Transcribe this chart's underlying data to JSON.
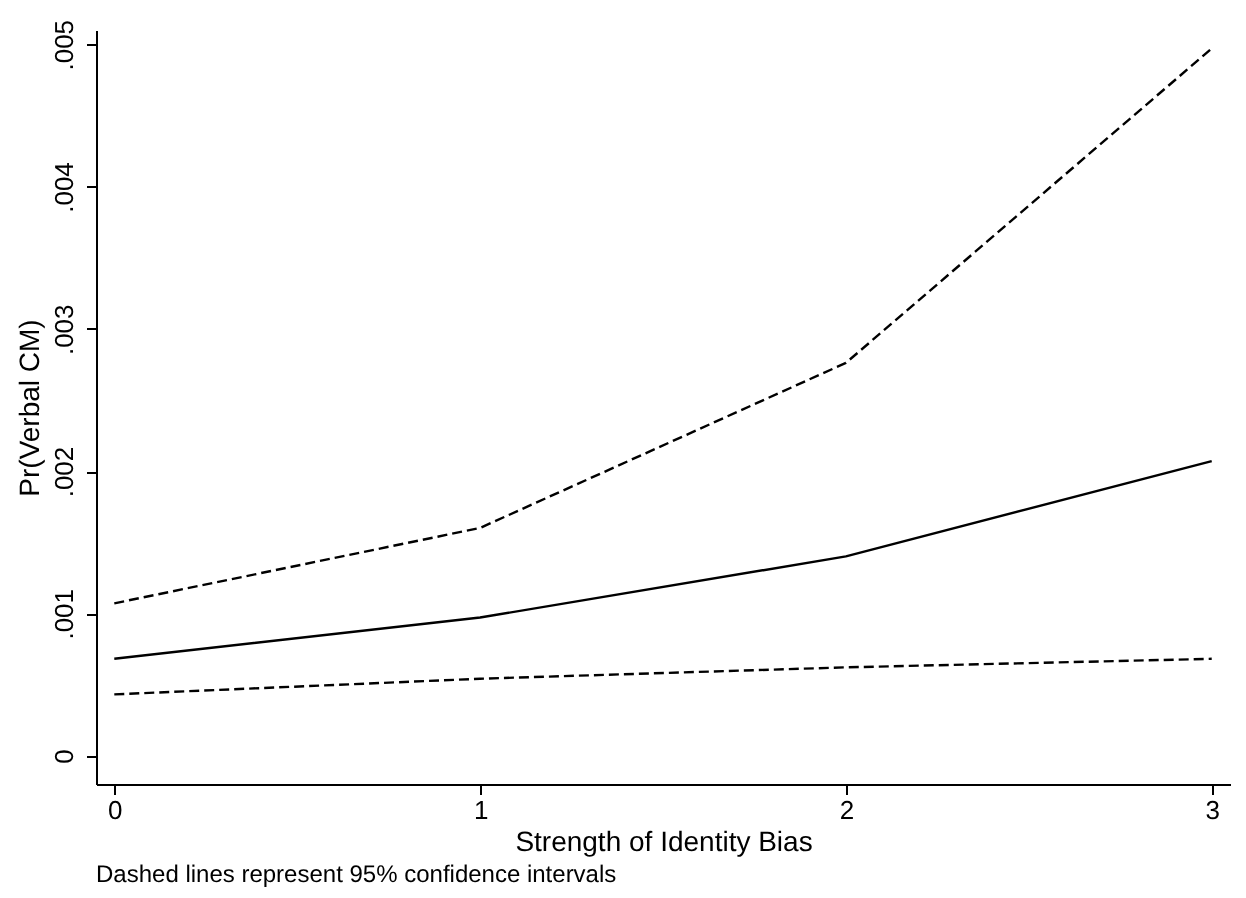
{
  "chart_data": {
    "type": "line",
    "xlabel": "Strength of Identity Bias",
    "ylabel": "Pr(Verbal CM)",
    "x": [
      0,
      1,
      2,
      3
    ],
    "series": [
      {
        "color": "#000000",
        "line_style": "solid",
        "values": [
          0.00068,
          0.00097,
          0.0014,
          0.00207
        ]
      },
      {
        "color": "#000000",
        "line_style": "dashed",
        "values": [
          0.00107,
          0.0016,
          0.00276,
          0.00497
        ]
      },
      {
        "color": "#000000",
        "line_style": "dashed",
        "values": [
          0.00043,
          0.00054,
          0.00062,
          0.00068
        ]
      }
    ],
    "xlim": [
      -0.05,
      3.05
    ],
    "xticks": [
      0,
      1,
      2,
      3
    ],
    "ylim": [
      -0.0002,
      0.0051
    ],
    "yticks": [
      0,
      {
        "value": 0.001,
        "label": ".001"
      },
      {
        "value": 0.002,
        "label": ".002"
      },
      {
        "value": 0.003,
        "label": ".003"
      },
      {
        "value": 0.004,
        "label": ".004"
      },
      {
        "value": 0.005,
        "label": ".005"
      }
    ],
    "grid": false,
    "annotations": [
      "Dashed lines represent 95% confidence intervals"
    ]
  }
}
